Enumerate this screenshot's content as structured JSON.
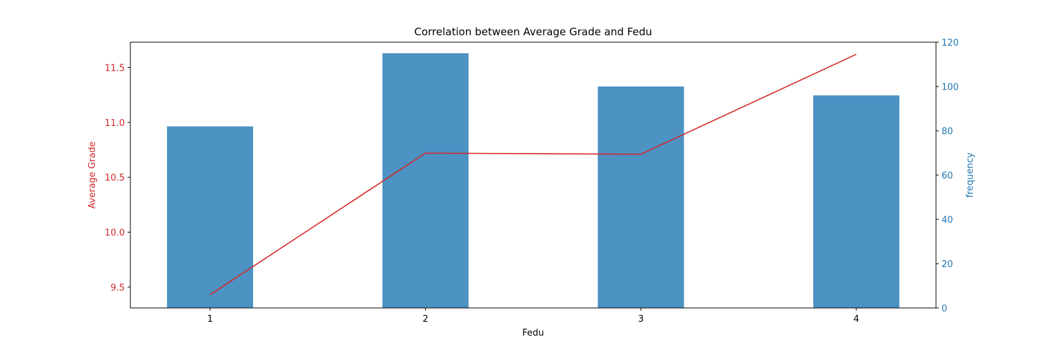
{
  "chart_data": {
    "type": "bar",
    "title": "Correlation between Average Grade and Fedu",
    "xlabel": "Fedu",
    "categories": [
      "1",
      "2",
      "3",
      "4"
    ],
    "x": [
      1,
      2,
      3,
      4
    ],
    "xlim": [
      0.63,
      4.37
    ],
    "left_axis": {
      "label": "Average Grade",
      "color": "#d62728",
      "ylim": [
        9.31,
        11.73
      ],
      "ticks": [
        "9.5",
        "10.0",
        "10.5",
        "11.0",
        "11.5"
      ]
    },
    "right_axis": {
      "label": "frequency",
      "color": "#1f77b4",
      "ylim": [
        0,
        120
      ],
      "ticks": [
        "0",
        "20",
        "40",
        "60",
        "80",
        "100",
        "120"
      ]
    },
    "series": [
      {
        "type": "line",
        "axis": "left",
        "color": "#d62728",
        "values": [
          9.43,
          10.72,
          10.71,
          11.62
        ]
      },
      {
        "type": "bar",
        "axis": "right",
        "color": "#1f77b4",
        "opacity": 0.8,
        "values": [
          82,
          115,
          100,
          96
        ]
      }
    ],
    "grid": false,
    "legend": "none"
  }
}
